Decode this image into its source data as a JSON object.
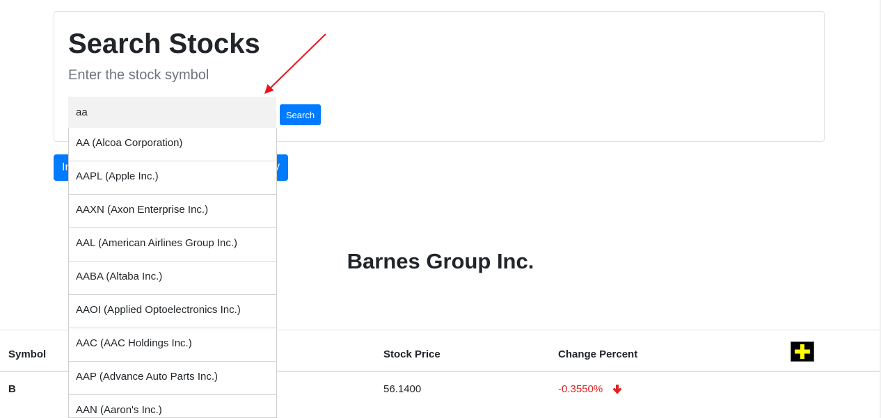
{
  "header": {
    "title": "Search Stocks",
    "subtitle": "Enter the stock symbol"
  },
  "search": {
    "value": "aa",
    "button_label": "Search"
  },
  "action_button": {
    "label_start": "In",
    "label_end": "y"
  },
  "company": {
    "name": "Barnes Group Inc."
  },
  "table": {
    "columns": [
      "Symbol",
      "Stock Price",
      "Change Percent"
    ],
    "rows": [
      {
        "symbol": "B",
        "price": "56.1400",
        "change": "-0.3550%"
      }
    ]
  },
  "autocomplete": {
    "items": [
      "AA (Alcoa Corporation)",
      "AAPL (Apple Inc.)",
      "AAXN (Axon Enterprise Inc.)",
      "AAL (American Airlines Group Inc.)",
      "AABA (Altaba Inc.)",
      "AAOI (Applied Optoelectronics Inc.)",
      "AAC (AAC Holdings Inc.)",
      "AAP (Advance Auto Parts Inc.)",
      "AAN (Aaron's Inc.)"
    ]
  },
  "icons": {
    "add": "plus-icon",
    "change_direction": "arrow-down-icon"
  },
  "colors": {
    "primary": "#007bff",
    "negative": "#e02020",
    "plus_fill": "#ffff00",
    "annotation_arrow": "#e8141c"
  }
}
